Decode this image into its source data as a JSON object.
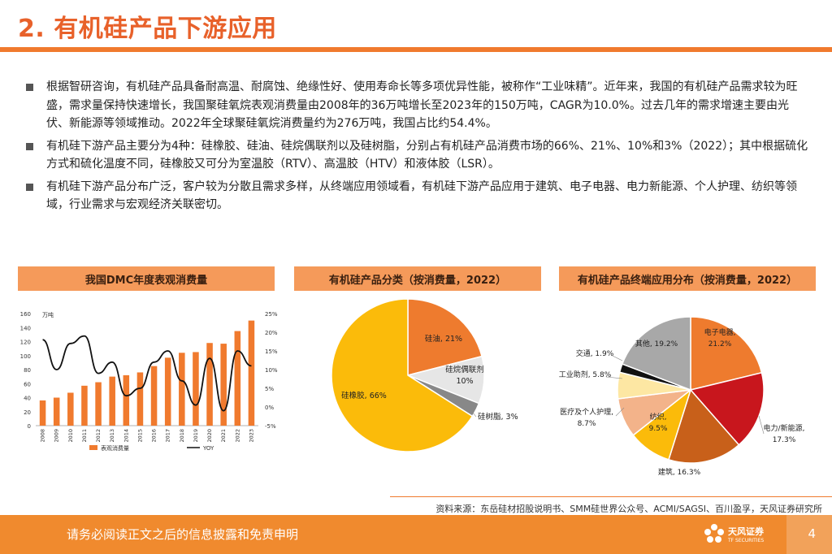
{
  "header": {
    "title": "2. 有机硅产品下游应用"
  },
  "bullets": [
    "根据智研咨询，有机硅产品具备耐高温、耐腐蚀、绝缘性好、使用寿命长等多项优异性能，被称作“工业味精”。近年来，我国的有机硅产品需求较为旺盛，需求量保持快速增长，我国聚硅氧烷表观消费量由2008年的36万吨增长至2023年的150万吨，CAGR为10.0%。过去几年的需求增速主要由光伏、新能源等领域推动。2022年全球聚硅氧烷消费量约为276万吨，我国占比约54.4%。",
    "有机硅下游产品主要分为4种：硅橡胶、硅油、硅烷偶联剂以及硅树脂，分别占有机硅产品消费市场的66%、21%、10%和3%（2022）；其中根据硫化方式和硫化温度不同，硅橡胶又可分为室温胶（RTV）、高温胶（HTV）和液体胶（LSR）。",
    "有机硅下游产品分布广泛，客户较为分散且需求多样，从终端应用领域看，有机硅下游产品应用于建筑、电子电器、电力新能源、个人护理、纺织等领域，行业需求与宏观经济关联密切。"
  ],
  "panels": {
    "p1": "我国DMC年度表观消费量",
    "p2": "有机硅产品分类（按消费量，2022）",
    "p3": "有机硅产品终端应用分布（按消费量，2022）"
  },
  "chart_data": [
    {
      "type": "bar",
      "title": "我国DMC年度表观消费量",
      "unit_label": "万吨",
      "categories": [
        "2008",
        "2009",
        "2010",
        "2011",
        "2012",
        "2013",
        "2014",
        "2015",
        "2016",
        "2017",
        "2018",
        "2019",
        "2020",
        "2021",
        "2022",
        "2023"
      ],
      "series": [
        {
          "name": "表观消费量",
          "axis": "left",
          "values": [
            36,
            40,
            47,
            57,
            62,
            70,
            72,
            76,
            85,
            97,
            104,
            105,
            118,
            117,
            135,
            150
          ]
        },
        {
          "name": "YOY",
          "axis": "right",
          "type": "line",
          "values": [
            18,
            10,
            17,
            19,
            9,
            12,
            3,
            5,
            12,
            15,
            7,
            0.5,
            13,
            -1,
            15,
            11
          ]
        }
      ],
      "ylim": [
        0,
        160
      ],
      "yticks": [
        0,
        20,
        40,
        60,
        80,
        100,
        120,
        140,
        160
      ],
      "y2lim": [
        -5,
        25
      ],
      "y2ticks": [
        "-5%",
        "0%",
        "5%",
        "10%",
        "15%",
        "20%",
        "25%"
      ],
      "legend": [
        "表观消费量",
        "YOY"
      ],
      "colors": {
        "bar": "#f07a2e",
        "line": "#111111"
      }
    },
    {
      "type": "pie",
      "title": "有机硅产品分类（按消费量，2022）",
      "slices": [
        {
          "label": "硅油, 21%",
          "value": 21,
          "color": "#ee7b2e"
        },
        {
          "label": "硅烷偶联剂, 10%",
          "value": 10,
          "color": "#e6e6e6"
        },
        {
          "label": "硅树脂, 3%",
          "value": 3,
          "color": "#888888"
        },
        {
          "label": "硅橡胶, 66%",
          "value": 66,
          "color": "#fbbb0a"
        }
      ]
    },
    {
      "type": "pie",
      "title": "有机硅产品终端应用分布（按消费量，2022）",
      "slices": [
        {
          "label": "电子电器, 21.2%",
          "value": 21.2,
          "color": "#ee7b2e"
        },
        {
          "label": "电力/新能源, 17.3%",
          "value": 17.3,
          "color": "#c8161d"
        },
        {
          "label": "建筑, 16.3%",
          "value": 16.3,
          "color": "#c8601a"
        },
        {
          "label": "纺织, 9.5%",
          "value": 9.5,
          "color": "#fbbb0a"
        },
        {
          "label": "医疗及个人护理, 8.7%",
          "value": 8.7,
          "color": "#f3b38a"
        },
        {
          "label": "工业助剂, 5.8%",
          "value": 5.8,
          "color": "#fde7a3"
        },
        {
          "label": "交通, 1.9%",
          "value": 1.9,
          "color": "#111111"
        },
        {
          "label": "其他, 19.2%",
          "value": 19.2,
          "color": "#a8a8a8"
        }
      ]
    }
  ],
  "source": "资料来源：东岳硅材招股说明书、SMM硅世界公众号、ACMI/SAGSI、百川盈孚，天风证券研究所",
  "footer": {
    "disclaimer": "请务必阅读正文之后的信息披露和免责申明",
    "logo_cn": "天风证券",
    "logo_en": "TF SECURITIES",
    "page": "4"
  }
}
